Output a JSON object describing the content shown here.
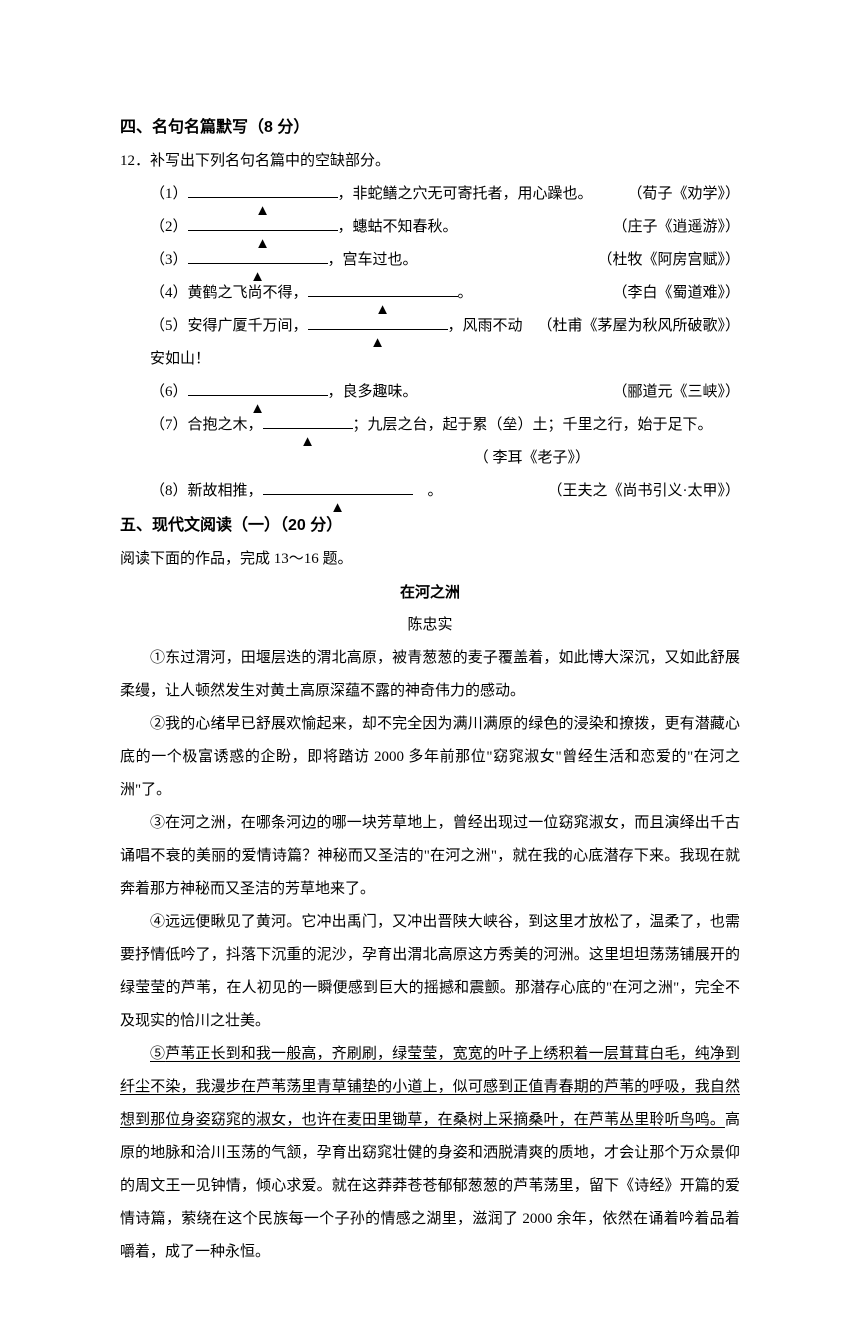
{
  "section4": {
    "heading": "四、名句名篇默写（8 分）",
    "intro": "12．补写出下列名句名篇中的空缺部分。",
    "items": [
      {
        "num": "（1）",
        "after": "，非蛇鳝之穴无可寄托者，用心躁也。",
        "source": "（荀子《劝学》）",
        "blank_class": "w1"
      },
      {
        "num": "（2）",
        "after": "，蟪蛄不知春秋。",
        "source": "（庄子《逍遥游》）",
        "blank_class": "w1"
      },
      {
        "num": "（3）",
        "after": "，宫车过也。",
        "source": "（杜牧《阿房宫赋》）",
        "blank_class": "w2"
      },
      {
        "num": "（4）黄鹤之飞尚不得，",
        "after": "。",
        "source": "（李白《蜀道难》）",
        "blank_class": "w1"
      },
      {
        "num": "（5）安得广厦千万间，",
        "after": "，风雨不动安如山！",
        "source": "（杜甫《茅屋为秋风所破歌》）",
        "blank_class": "w2"
      },
      {
        "num": "（6）",
        "after": "，良多趣味。",
        "source": "（郦道元《三峡》）",
        "blank_class": "w2"
      },
      {
        "num": "（7）合抱之木，",
        "after": "；九层之台，起于累（垒）土；千里之行，始于足下。",
        "source": "",
        "blank_class": "w4"
      },
      {
        "num": "",
        "after": "",
        "source": "（ 李耳《老子》）",
        "blank_class": ""
      },
      {
        "num": "（8）新故相推，",
        "after": "　。",
        "source": "（王夫之《尚书引义·太甲》）",
        "blank_class": "w3"
      }
    ],
    "triangle": "▲"
  },
  "section5": {
    "heading": "五、现代文阅读（一）（20 分）",
    "intro": "阅读下面的作品，完成 13～16 题。",
    "title": "在河之洲",
    "author": "陈忠实",
    "paragraphs": [
      {
        "marker": "①",
        "text": "东过渭河，田堰层迭的渭北高原，被青葱葱的麦子覆盖着，如此博大深沉，又如此舒展柔缦，让人顿然发生对黄土高原深蕴不露的神奇伟力的感动。",
        "underlined": false
      },
      {
        "marker": "②",
        "text": "我的心绪早已舒展欢愉起来，却不完全因为满川满原的绿色的浸染和撩拨，更有潜藏心底的一个极富诱惑的企盼，即将踏访 2000 多年前那位\"窈窕淑女\"曾经生活和恋爱的\"在河之洲\"了。",
        "underlined": false
      },
      {
        "marker": "③",
        "text": "在河之洲，在哪条河边的哪一块芳草地上，曾经出现过一位窈窕淑女，而且演绎出千古诵唱不衰的美丽的爱情诗篇？神秘而又圣洁的\"在河之洲\"，就在我的心底潜存下来。我现在就奔着那方神秘而又圣洁的芳草地来了。",
        "underlined": false
      },
      {
        "marker": "④",
        "text": "远远便瞅见了黄河。它冲出禹门，又冲出晋陕大峡谷，到这里才放松了，温柔了，也需要抒情低吟了，抖落下沉重的泥沙，孕育出渭北高原这方秀美的河洲。这里坦坦荡荡铺展开的绿莹莹的芦苇，在人初见的一瞬便感到巨大的摇撼和震颤。那潜存心底的\"在河之洲\"，完全不及现实的恰川之壮美。",
        "underlined": false
      },
      {
        "marker": "⑤",
        "text_underlined": "芦苇正长到和我一般高，齐刷刷，绿莹莹，宽宽的叶子上绣积着一层茸茸白毛，纯净到纤尘不染，我漫步在芦苇荡里青草铺垫的小道上，似可感到正值青春期的芦苇的呼吸，我自然想到那位身姿窈窕的淑女，也许在麦田里锄草，在桑树上采摘桑叶，在芦苇丛里聆听鸟鸣。",
        "text_after": "高原的地脉和洽川玉荡的气颔，孕育出窈窕壮健的身姿和洒脱清爽的质地，才会让那个万众景仰的周文王一见钟情，倾心求爱。就在这莽莽苍苍郁郁葱葱的芦苇荡里，留下《诗经》开篇的爱情诗篇，萦绕在这个民族每一个子孙的情感之湖里，滋润了 2000 余年，依然在诵着吟着品着嚼着，成了一种永恒。",
        "underlined": true
      }
    ]
  }
}
